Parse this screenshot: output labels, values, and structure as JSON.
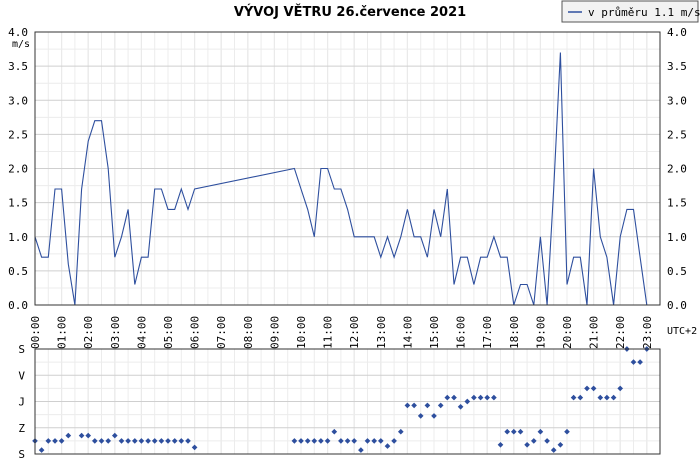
{
  "chart_data": [
    {
      "type": "line",
      "title": "VÝVOJ VĚTRU  26.července 2021",
      "ylabel": "m/s",
      "xlabel": "UTC+2",
      "ylim": [
        0,
        4
      ],
      "y_ticks": [
        "0.0",
        "0.5",
        "1.0",
        "1.5",
        "2.0",
        "2.5",
        "3.0",
        "3.5",
        "4.0"
      ],
      "x_ticks": [
        "00:00",
        "01:00",
        "02:00",
        "03:00",
        "04:00",
        "05:00",
        "06:00",
        "07:00",
        "08:00",
        "09:00",
        "10:00",
        "11:00",
        "12:00",
        "13:00",
        "14:00",
        "15:00",
        "16:00",
        "17:00",
        "18:00",
        "19:00",
        "20:00",
        "21:00",
        "22:00",
        "23:00"
      ],
      "grid": true,
      "legend": "top-right",
      "color": "#2e4f9e",
      "series": [
        {
          "name": "v průměru 1.1 m/s",
          "x": [
            0,
            0.25,
            0.5,
            0.75,
            1,
            1.25,
            1.5,
            1.75,
            2,
            2.25,
            2.5,
            2.75,
            3,
            3.25,
            3.5,
            3.75,
            4,
            4.25,
            4.5,
            4.75,
            5,
            5.25,
            5.5,
            5.75,
            6,
            9.75,
            10,
            10.25,
            10.5,
            10.75,
            11,
            11.25,
            11.5,
            11.75,
            12,
            12.25,
            12.5,
            12.75,
            13,
            13.25,
            13.5,
            13.75,
            14,
            14.25,
            14.5,
            14.75,
            15,
            15.25,
            15.5,
            15.75,
            16,
            16.25,
            16.5,
            16.75,
            17,
            17.25,
            17.5,
            17.75,
            18,
            18.25,
            18.5,
            18.75,
            19,
            19.25,
            19.5,
            19.75,
            20,
            20.25,
            20.5,
            20.75,
            21,
            21.25,
            21.5,
            21.75,
            22,
            22.25,
            22.5,
            22.75,
            23
          ],
          "y": [
            1.0,
            0.7,
            0.7,
            1.7,
            1.7,
            0.6,
            0.0,
            1.7,
            2.4,
            2.7,
            2.7,
            2.0,
            0.7,
            1.0,
            1.4,
            0.3,
            0.7,
            0.7,
            1.7,
            1.7,
            1.4,
            1.4,
            1.7,
            1.4,
            1.7,
            2.0,
            1.7,
            1.4,
            1.0,
            2.0,
            2.0,
            1.7,
            1.7,
            1.4,
            1.0,
            1.0,
            1.0,
            1.0,
            0.7,
            1.0,
            0.7,
            1.0,
            1.4,
            1.0,
            1.0,
            0.7,
            1.4,
            1.0,
            1.7,
            0.3,
            0.7,
            0.7,
            0.3,
            0.7,
            0.7,
            1.0,
            0.7,
            0.7,
            0.0,
            0.3,
            0.3,
            0.0,
            1.0,
            0.0,
            1.7,
            3.7,
            0.3,
            0.7,
            0.7,
            0.0,
            2.0,
            1.0,
            0.7,
            0.0,
            1.0,
            1.4,
            1.4,
            0.7,
            0.0
          ]
        }
      ]
    },
    {
      "type": "scatter",
      "y_categories": [
        "S",
        "V",
        "J",
        "Z",
        "S"
      ],
      "x_ticks": [],
      "grid": true,
      "color": "#2e4f9e",
      "x": [
        0,
        0.25,
        0.5,
        0.75,
        1,
        1.25,
        1.75,
        2,
        2.25,
        2.5,
        2.75,
        3,
        3.25,
        3.5,
        3.75,
        4,
        4.25,
        4.5,
        4.75,
        5,
        5.25,
        5.5,
        5.75,
        6,
        9.75,
        10,
        10.25,
        10.5,
        10.75,
        11,
        11.25,
        11.5,
        11.75,
        12,
        12.25,
        12.5,
        12.75,
        13,
        13.25,
        13.5,
        13.75,
        14,
        14.25,
        14.5,
        14.75,
        15,
        15.25,
        15.5,
        15.75,
        16,
        16.25,
        16.5,
        16.75,
        17,
        17.25,
        17.5,
        17.75,
        18,
        18.25,
        18.5,
        18.75,
        19,
        19.25,
        19.5,
        19.75,
        20,
        20.25,
        20.5,
        20.75,
        21,
        21.25,
        21.5,
        21.75,
        22,
        22.25,
        22.5,
        22.75,
        23
      ],
      "y": [
        3.5,
        3.85,
        3.5,
        3.5,
        3.5,
        3.3,
        3.3,
        3.3,
        3.5,
        3.5,
        3.5,
        3.3,
        3.5,
        3.5,
        3.5,
        3.5,
        3.5,
        3.5,
        3.5,
        3.5,
        3.5,
        3.5,
        3.5,
        3.75,
        3.5,
        3.5,
        3.5,
        3.5,
        3.5,
        3.5,
        3.15,
        3.5,
        3.5,
        3.5,
        3.85,
        3.5,
        3.5,
        3.5,
        3.7,
        3.5,
        3.15,
        2.15,
        2.15,
        2.55,
        2.15,
        2.55,
        2.15,
        1.85,
        1.85,
        2.2,
        2.0,
        1.85,
        1.85,
        1.85,
        1.85,
        3.65,
        3.15,
        3.15,
        3.15,
        3.65,
        3.5,
        3.15,
        3.5,
        3.85,
        3.65,
        3.15,
        1.85,
        1.85,
        1.5,
        1.5,
        1.85,
        1.85,
        1.85,
        1.5,
        0.0,
        0.5,
        0.5,
        0.0
      ]
    }
  ]
}
